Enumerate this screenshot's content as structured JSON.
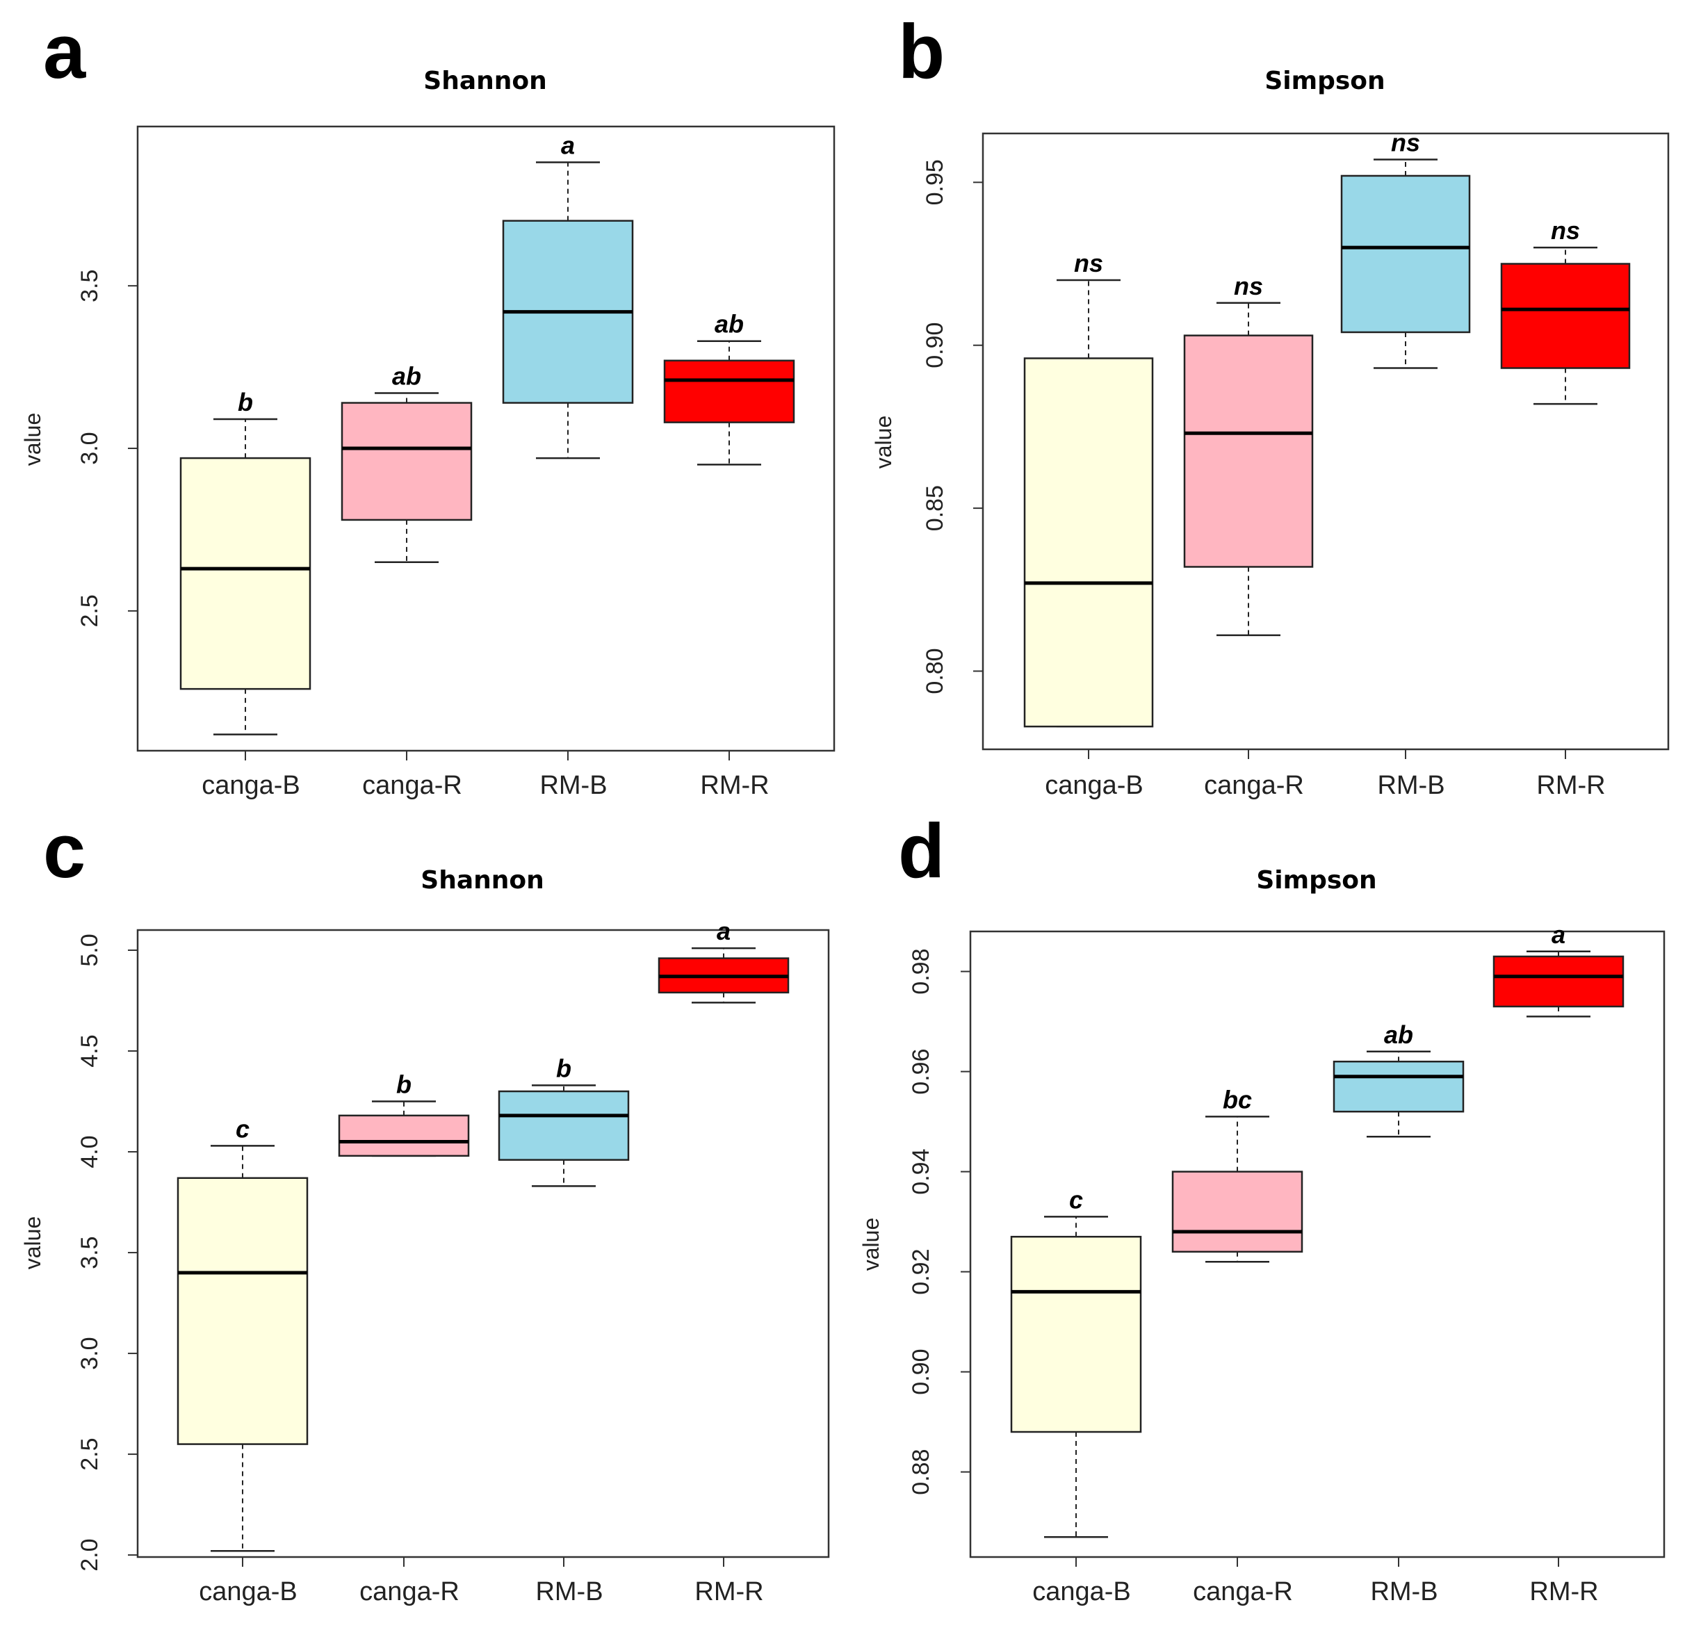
{
  "chart_data": [
    {
      "panel": "a",
      "type": "box",
      "title": "Shannon",
      "ylabel": "value",
      "ylim": [
        2.07,
        3.99
      ],
      "yticks": [
        "2.5",
        "3.0",
        "3.5"
      ],
      "categories": [
        "canga-B",
        "canga-R",
        "RM-B",
        "RM-R"
      ],
      "colors": [
        "#ffffe0",
        "#ffb6c1",
        "#99d8e8",
        "#ff0000"
      ],
      "boxes": [
        {
          "min": 2.12,
          "q1": 2.26,
          "median": 2.63,
          "q3": 2.97,
          "max": 3.09,
          "sig": "b"
        },
        {
          "min": 2.65,
          "q1": 2.78,
          "median": 3.0,
          "q3": 3.14,
          "max": 3.17,
          "sig": "ab"
        },
        {
          "min": 2.97,
          "q1": 3.14,
          "median": 3.42,
          "q3": 3.7,
          "max": 3.88,
          "sig": "a"
        },
        {
          "min": 2.95,
          "q1": 3.08,
          "median": 3.21,
          "q3": 3.27,
          "max": 3.33,
          "sig": "ab"
        }
      ]
    },
    {
      "panel": "b",
      "type": "box",
      "title": "Simpson",
      "ylabel": "value",
      "ylim": [
        0.776,
        0.965
      ],
      "yticks": [
        "0.80",
        "0.85",
        "0.90",
        "0.95"
      ],
      "categories": [
        "canga-B",
        "canga-R",
        "RM-B",
        "RM-R"
      ],
      "colors": [
        "#ffffe0",
        "#ffb6c1",
        "#99d8e8",
        "#ff0000"
      ],
      "boxes": [
        {
          "min": 0.783,
          "q1": 0.783,
          "median": 0.827,
          "q3": 0.896,
          "max": 0.92,
          "sig": "ns"
        },
        {
          "min": 0.811,
          "q1": 0.832,
          "median": 0.873,
          "q3": 0.903,
          "max": 0.913,
          "sig": "ns"
        },
        {
          "min": 0.893,
          "q1": 0.904,
          "median": 0.93,
          "q3": 0.952,
          "max": 0.957,
          "sig": "ns"
        },
        {
          "min": 0.882,
          "q1": 0.893,
          "median": 0.911,
          "q3": 0.925,
          "max": 0.93,
          "sig": "ns"
        }
      ]
    },
    {
      "panel": "c",
      "type": "box",
      "title": "Shannon",
      "ylabel": "value",
      "ylim": [
        1.99,
        5.1
      ],
      "yticks": [
        "2.0",
        "2.5",
        "3.0",
        "3.5",
        "4.0",
        "4.5",
        "5.0"
      ],
      "categories": [
        "canga-B",
        "canga-R",
        "RM-B",
        "RM-R"
      ],
      "colors": [
        "#ffffe0",
        "#ffb6c1",
        "#99d8e8",
        "#ff0000"
      ],
      "boxes": [
        {
          "min": 2.02,
          "q1": 2.55,
          "median": 3.4,
          "q3": 3.87,
          "max": 4.03,
          "sig": "c"
        },
        {
          "min": 3.98,
          "q1": 3.98,
          "median": 4.05,
          "q3": 4.18,
          "max": 4.25,
          "sig": "b"
        },
        {
          "min": 3.83,
          "q1": 3.96,
          "median": 4.18,
          "q3": 4.3,
          "max": 4.33,
          "sig": "b"
        },
        {
          "min": 4.74,
          "q1": 4.79,
          "median": 4.87,
          "q3": 4.96,
          "max": 5.01,
          "sig": "a"
        }
      ]
    },
    {
      "panel": "d",
      "type": "box",
      "title": "Simpson",
      "ylabel": "value",
      "ylim": [
        0.863,
        0.988
      ],
      "yticks": [
        "0.88",
        "0.90",
        "0.92",
        "0.94",
        "0.96",
        "0.98"
      ],
      "categories": [
        "canga-B",
        "canga-R",
        "RM-B",
        "RM-R"
      ],
      "colors": [
        "#ffffe0",
        "#ffb6c1",
        "#99d8e8",
        "#ff0000"
      ],
      "boxes": [
        {
          "min": 0.867,
          "q1": 0.888,
          "median": 0.916,
          "q3": 0.927,
          "max": 0.931,
          "sig": "c"
        },
        {
          "min": 0.922,
          "q1": 0.924,
          "median": 0.928,
          "q3": 0.94,
          "max": 0.951,
          "sig": "bc"
        },
        {
          "min": 0.947,
          "q1": 0.952,
          "median": 0.959,
          "q3": 0.962,
          "max": 0.964,
          "sig": "ab"
        },
        {
          "min": 0.971,
          "q1": 0.973,
          "median": 0.979,
          "q3": 0.983,
          "max": 0.984,
          "sig": "a"
        }
      ]
    }
  ]
}
